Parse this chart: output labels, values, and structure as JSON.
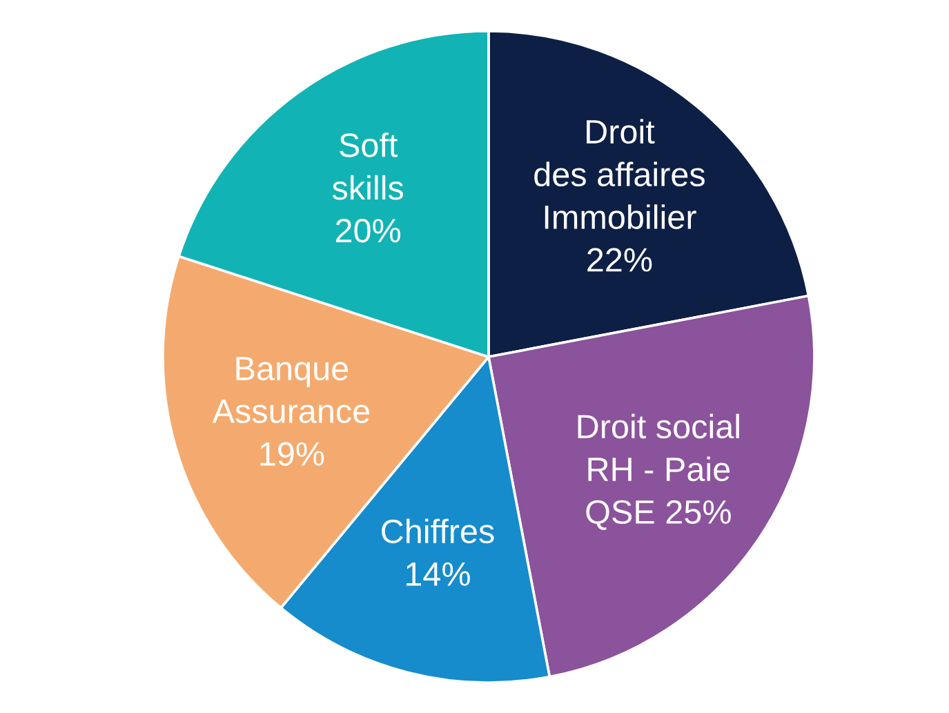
{
  "chart_data": {
    "type": "pie",
    "categories": [
      "Droit\ndes affaires\nImmobilier",
      "Droit social\nRH - Paie\nQSE",
      "Chiffres",
      "Banque\nAssurance",
      "Soft\nskills"
    ],
    "values": [
      22,
      25,
      14,
      19,
      20
    ],
    "value_labels": [
      "22%",
      "25%",
      "14%",
      "19%",
      "20%"
    ],
    "colors": [
      "#0e1f45",
      "#8b539b",
      "#168ccc",
      "#f4aa6e",
      "#12b3b4"
    ],
    "legend": false
  }
}
